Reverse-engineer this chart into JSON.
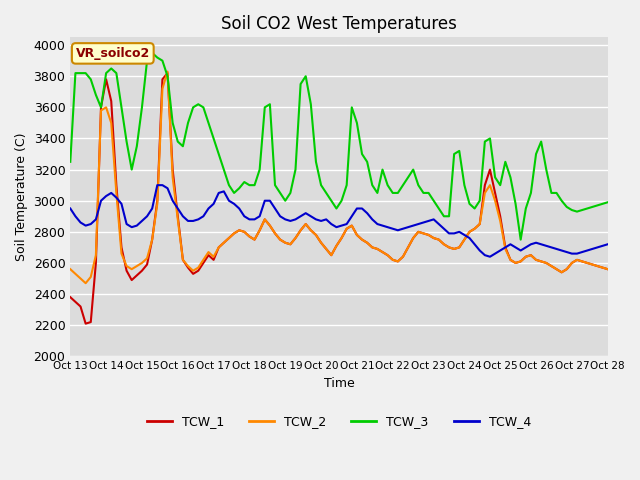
{
  "title": "Soil CO2 West Temperatures",
  "xlabel": "Time",
  "ylabel": "Soil Temperature (C)",
  "ylim": [
    2000,
    4050
  ],
  "background_color": "#f0f0f0",
  "plot_bg": "#dcdcdc",
  "annotation_text": "VR_soilco2",
  "annotation_bg": "#ffffcc",
  "annotation_border": "#cc8800",
  "colors": {
    "TCW_1": "#cc0000",
    "TCW_2": "#ff8800",
    "TCW_3": "#00cc00",
    "TCW_4": "#0000cc"
  },
  "xtick_labels": [
    "Oct 13",
    "Oct 14",
    "Oct 15",
    "Oct 16",
    "Oct 17",
    "Oct 18",
    "Oct 19",
    "Oct 20",
    "Oct 21",
    "Oct 22",
    "Oct 23",
    "Oct 24",
    "Oct 25",
    "Oct 26",
    "Oct 27",
    "Oct 28"
  ],
  "ytick_labels": [
    "2000",
    "2200",
    "2400",
    "2600",
    "2800",
    "3000",
    "3200",
    "3400",
    "3600",
    "3800",
    "4000"
  ],
  "ytick_positions": [
    2000,
    2200,
    2400,
    2600,
    2800,
    3000,
    3200,
    3400,
    3600,
    3800,
    4000
  ],
  "tcw1": [
    2380,
    2350,
    2320,
    2210,
    2220,
    2600,
    3600,
    3780,
    3640,
    3100,
    2700,
    2550,
    2490,
    2520,
    2550,
    2590,
    2750,
    3000,
    3780,
    3820,
    3200,
    2900,
    2620,
    2570,
    2530,
    2550,
    2600,
    2650,
    2620,
    2700,
    2730,
    2760,
    2790,
    2810,
    2800,
    2770,
    2750,
    2810,
    2880,
    2840,
    2790,
    2750,
    2730,
    2720,
    2760,
    2810,
    2850,
    2810,
    2780,
    2730,
    2690,
    2650,
    2710,
    2760,
    2820,
    2840,
    2780,
    2750,
    2730,
    2700,
    2690,
    2670,
    2650,
    2620,
    2610,
    2640,
    2700,
    2760,
    2800,
    2790,
    2780,
    2760,
    2750,
    2720,
    2700,
    2690,
    2700,
    2750,
    2800,
    2820,
    2850,
    3100,
    3200,
    3050,
    2900,
    2700,
    2620,
    2600,
    2610,
    2640,
    2650,
    2620,
    2610,
    2600,
    2580,
    2560,
    2540,
    2560,
    2600,
    2620,
    2610,
    2600,
    2590,
    2580,
    2570,
    2560
  ],
  "tcw2": [
    2560,
    2530,
    2500,
    2470,
    2510,
    2650,
    3580,
    3600,
    3500,
    3050,
    2660,
    2580,
    2560,
    2580,
    2600,
    2630,
    2750,
    2980,
    3720,
    3830,
    3150,
    2880,
    2620,
    2580,
    2550,
    2570,
    2620,
    2670,
    2640,
    2700,
    2730,
    2760,
    2790,
    2810,
    2800,
    2770,
    2750,
    2810,
    2880,
    2840,
    2790,
    2750,
    2730,
    2720,
    2760,
    2810,
    2850,
    2810,
    2780,
    2730,
    2690,
    2650,
    2710,
    2760,
    2820,
    2840,
    2780,
    2750,
    2730,
    2700,
    2690,
    2670,
    2650,
    2620,
    2610,
    2640,
    2700,
    2760,
    2800,
    2790,
    2780,
    2760,
    2750,
    2720,
    2700,
    2690,
    2700,
    2750,
    2800,
    2820,
    2850,
    3050,
    3100,
    3000,
    2870,
    2690,
    2620,
    2600,
    2610,
    2640,
    2650,
    2620,
    2610,
    2600,
    2580,
    2560,
    2540,
    2560,
    2600,
    2620,
    2610,
    2600,
    2590,
    2580,
    2570,
    2560
  ],
  "tcw3": [
    3250,
    3820,
    3820,
    3820,
    3780,
    3680,
    3600,
    3820,
    3850,
    3820,
    3600,
    3380,
    3200,
    3350,
    3600,
    3900,
    3950,
    3920,
    3900,
    3800,
    3500,
    3380,
    3350,
    3500,
    3600,
    3620,
    3600,
    3500,
    3400,
    3300,
    3200,
    3100,
    3050,
    3080,
    3120,
    3100,
    3100,
    3200,
    3600,
    3620,
    3100,
    3050,
    3000,
    3050,
    3200,
    3750,
    3800,
    3620,
    3250,
    3100,
    3050,
    3000,
    2950,
    3000,
    3100,
    3600,
    3500,
    3300,
    3250,
    3100,
    3050,
    3200,
    3100,
    3050,
    3050,
    3100,
    3150,
    3200,
    3100,
    3050,
    3050,
    3000,
    2950,
    2900,
    2900,
    3300,
    3320,
    3100,
    2980,
    2950,
    3000,
    3380,
    3400,
    3150,
    3100,
    3250,
    3150,
    2980,
    2750,
    2950,
    3050,
    3300,
    3380,
    3200,
    3050,
    3050,
    3000,
    2960,
    2940,
    2930,
    2940,
    2950,
    2960,
    2970,
    2980,
    2990
  ],
  "tcw4": [
    2950,
    2900,
    2860,
    2840,
    2850,
    2880,
    3000,
    3030,
    3050,
    3020,
    2980,
    2850,
    2830,
    2840,
    2870,
    2900,
    2950,
    3100,
    3100,
    3080,
    3000,
    2950,
    2900,
    2870,
    2870,
    2880,
    2900,
    2950,
    2980,
    3050,
    3060,
    3000,
    2980,
    2950,
    2900,
    2880,
    2880,
    2900,
    3000,
    3000,
    2950,
    2900,
    2880,
    2870,
    2880,
    2900,
    2920,
    2900,
    2880,
    2870,
    2880,
    2850,
    2830,
    2840,
    2850,
    2900,
    2950,
    2950,
    2920,
    2880,
    2850,
    2840,
    2830,
    2820,
    2810,
    2820,
    2830,
    2840,
    2850,
    2860,
    2870,
    2880,
    2850,
    2820,
    2790,
    2790,
    2800,
    2780,
    2760,
    2720,
    2680,
    2650,
    2640,
    2660,
    2680,
    2700,
    2720,
    2700,
    2680,
    2700,
    2720,
    2730,
    2720,
    2710,
    2700,
    2690,
    2680,
    2670,
    2660,
    2660,
    2670,
    2680,
    2690,
    2700,
    2710,
    2720
  ]
}
